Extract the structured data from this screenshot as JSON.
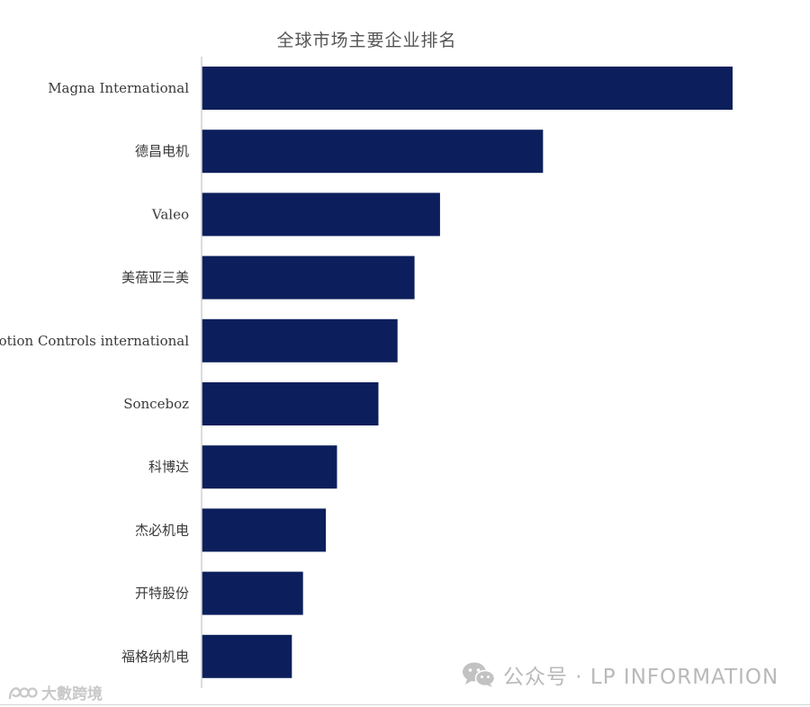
{
  "chart_data": {
    "type": "bar",
    "orientation": "horizontal",
    "title": "全球市场主要企业排名",
    "categories": [
      "Magna International",
      "德昌电机",
      "Valeo",
      "美蓓亚三美",
      "Motion Controls international",
      "Sonceboz",
      "科博达",
      "杰必机电",
      "开特股份",
      "福格纳机电"
    ],
    "values": [
      100,
      64.3,
      44.9,
      40.1,
      36.9,
      33.3,
      25.5,
      23.4,
      19.1,
      17.0
    ],
    "xlim": [
      0,
      100
    ],
    "grid": false,
    "legend": "none",
    "bar_color": "#0c1f5c"
  },
  "watermarks": {
    "wechat_text": "公众号 · LP INFORMATION",
    "brand_text": "大數跨境"
  },
  "colors": {
    "bar": "#0c1f5c",
    "axis": "#d0d0d0",
    "label": "#3a3a3a",
    "watermark": "#b9b9b9"
  },
  "icons": {
    "wechat": "wechat-icon",
    "brand": "brand-logo-icon"
  }
}
